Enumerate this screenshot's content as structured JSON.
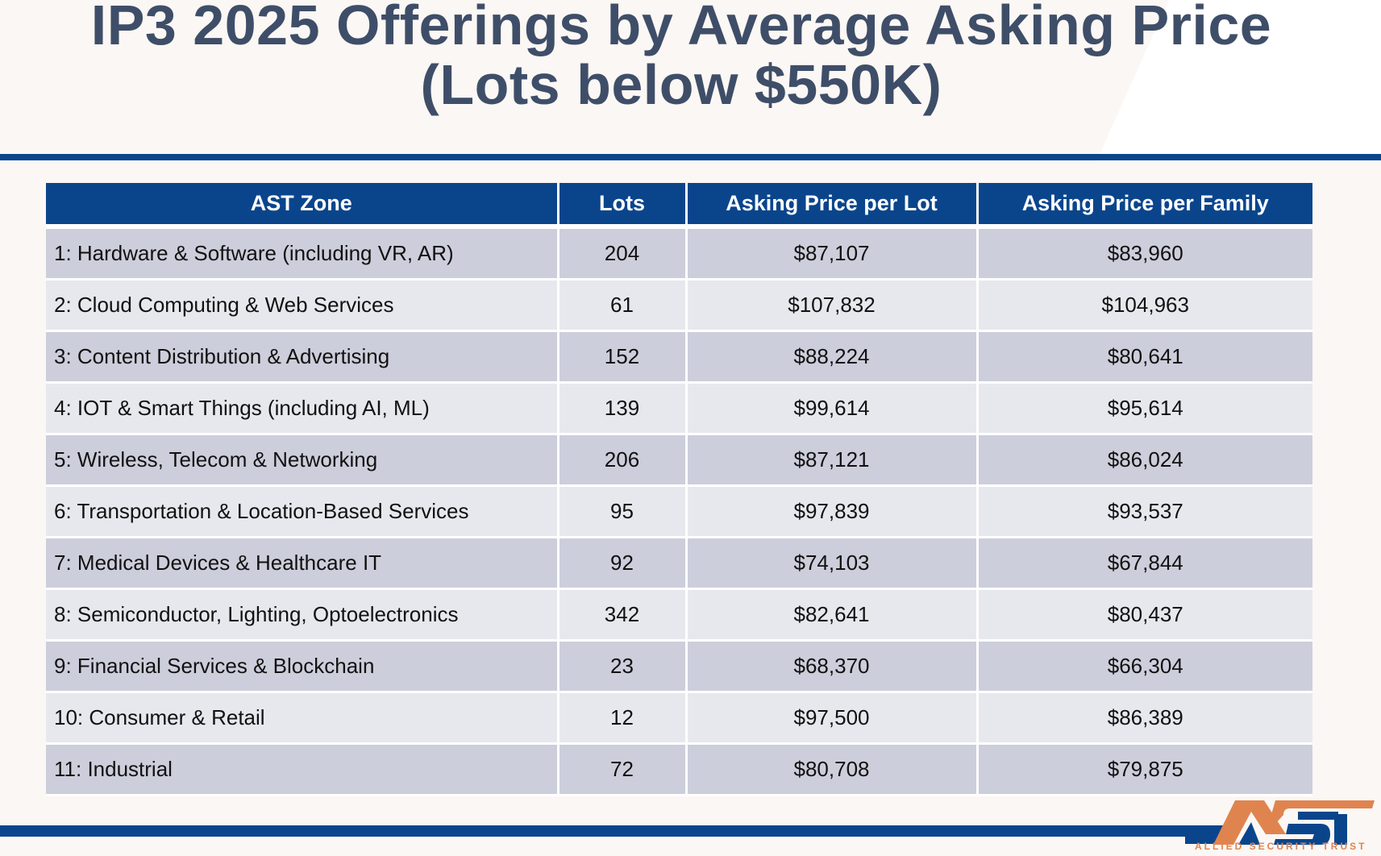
{
  "title_line1": "IP3 2025 Offerings by Average Asking Price",
  "title_line2": "(Lots below $550K)",
  "table": {
    "headers": [
      "AST Zone",
      "Lots",
      "Asking Price per Lot",
      "Asking Price per Family"
    ],
    "rows": [
      [
        "1: Hardware & Software (including VR, AR)",
        "204",
        "$87,107",
        "$83,960"
      ],
      [
        "2: Cloud Computing & Web Services",
        "61",
        "$107,832",
        "$104,963"
      ],
      [
        "3: Content Distribution & Advertising",
        "152",
        "$88,224",
        "$80,641"
      ],
      [
        "4: IOT & Smart Things (including AI, ML)",
        "139",
        "$99,614",
        "$95,614"
      ],
      [
        "5: Wireless, Telecom & Networking",
        "206",
        "$87,121",
        "$86,024"
      ],
      [
        "6: Transportation & Location-Based Services",
        "95",
        "$97,839",
        "$93,537"
      ],
      [
        "7: Medical Devices & Healthcare IT",
        "92",
        "$74,103",
        "$67,844"
      ],
      [
        "8: Semiconductor, Lighting, Optoelectronics",
        "342",
        "$82,641",
        "$80,437"
      ],
      [
        "9: Financial Services & Blockchain",
        "23",
        "$68,370",
        "$66,304"
      ],
      [
        "10: Consumer & Retail",
        "12",
        "$97,500",
        "$86,389"
      ],
      [
        "11: Industrial",
        "72",
        "$80,708",
        "$79,875"
      ]
    ]
  },
  "logo": {
    "text": "AST",
    "tagline": "ALLIED SECURITY TRUST",
    "colors": {
      "orange": "#e0844f",
      "blue": "#0a458c"
    }
  }
}
